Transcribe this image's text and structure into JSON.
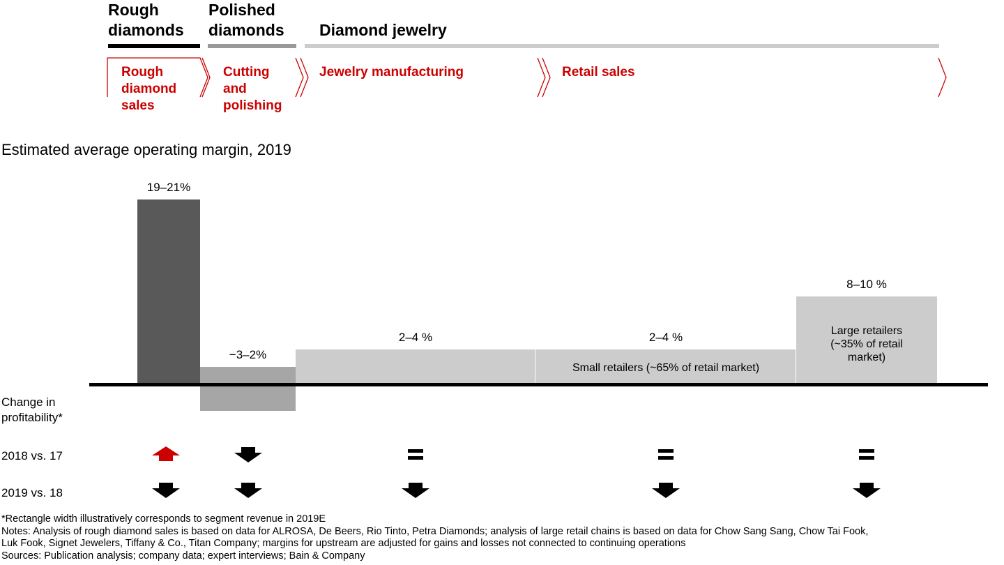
{
  "stages": [
    {
      "title": "Rough diamonds",
      "title_lines": [
        "Rough",
        "diamonds"
      ],
      "bar_color": "#000000"
    },
    {
      "title": "Polished diamonds",
      "title_lines": [
        "Polished",
        "diamonds"
      ],
      "bar_color": "#999999"
    },
    {
      "title": "Diamond jewelry",
      "title_lines": [
        "Diamond jewelry"
      ],
      "bar_color": "#cccccc"
    }
  ],
  "steps": [
    {
      "label_lines": [
        "Rough",
        "diamond",
        "sales"
      ]
    },
    {
      "label_lines": [
        "Cutting",
        "and",
        "polishing"
      ]
    },
    {
      "label_lines": [
        "Jewelry manufacturing"
      ]
    },
    {
      "label_lines": [
        "Retail sales"
      ]
    }
  ],
  "chart_data": {
    "type": "bar",
    "title": "Estimated average operating margin, 2019",
    "note": "Rectangle width illustratively corresponds to segment revenue in 2019E",
    "categories": [
      "Rough diamond sales",
      "Cutting and polishing",
      "Jewelry manufacturing",
      "Small retailers (~65% of retail market)",
      "Large retailers (~35% of retail market)"
    ],
    "ranges": [
      [
        19,
        21
      ],
      [
        -3,
        2
      ],
      [
        2,
        4
      ],
      [
        2,
        4
      ],
      [
        8,
        10
      ]
    ],
    "value_labels": [
      "19–21%",
      "−3–2%",
      "2–4 %",
      "2–4 %",
      "8–10 %"
    ],
    "relative_widths": [
      90,
      137,
      344,
      374,
      202
    ],
    "inbar_labels": [
      "",
      "",
      "",
      "Small retailers (~65% of retail market)",
      "Large retailers (~35% of retail market)"
    ],
    "inbar_label_lines": [
      [],
      [],
      [],
      [
        "Small retailers (~65% of retail market)"
      ],
      [
        "Large retailers",
        "(~35% of retail",
        "market)"
      ]
    ],
    "colors": [
      "#595959",
      "#a6a6a6",
      "#cccccc",
      "#cccccc",
      "#cccccc"
    ]
  },
  "profitability": {
    "header_lines": [
      "Change in",
      "profitability*"
    ],
    "rows": [
      {
        "label": "2018 vs. 17",
        "changes": [
          "up",
          "down",
          "equal",
          "equal",
          "equal"
        ]
      },
      {
        "label": "2019 vs. 18",
        "changes": [
          "down",
          "down",
          "down",
          "down",
          "down"
        ]
      }
    ],
    "up_color": "#cc0000",
    "down_color": "#000000"
  },
  "footnotes": [
    "*Rectangle width illustratively corresponds to segment revenue in 2019E",
    "Notes: Analysis of rough diamond sales is based on data for ALROSA, De Beers, Rio Tinto, Petra Diamonds; analysis of large retail chains is based on data for Chow Sang Sang, Chow Tai Fook,",
    "Luk Fook, Signet Jewelers, Tiffany & Co., Titan Company; margins for upstream are adjusted for gains and losses not connected to continuing operations",
    "Sources: Publication analysis; company data; expert interviews; Bain & Company"
  ]
}
